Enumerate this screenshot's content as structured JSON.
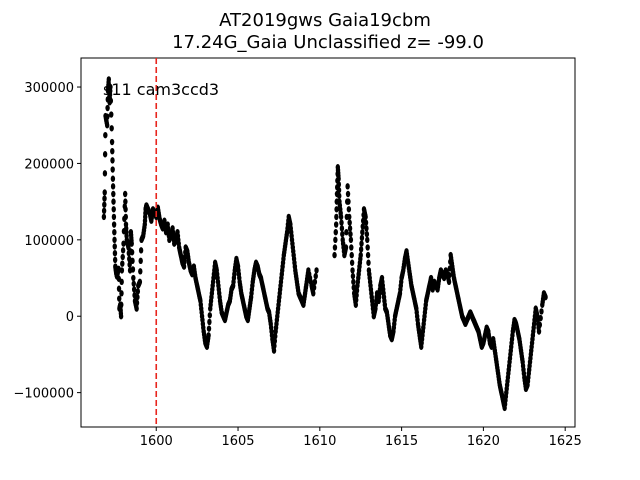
{
  "chart_data": {
    "type": "scatter",
    "title_line1": "AT2019gws  Gaia19cbm",
    "title_line2": "17.24G_Gaia Unclassified z= -99.0",
    "annotation": "s11 cam3ccd3",
    "xlabel": "",
    "ylabel": "",
    "xlim": [
      1595.4,
      1625.6
    ],
    "ylim": [
      -145000,
      338000
    ],
    "x_ticks": [
      1600,
      1605,
      1610,
      1615,
      1620,
      1625
    ],
    "y_ticks": [
      -100000,
      0,
      100000,
      200000,
      300000
    ],
    "vline_x": 1600,
    "vline_color": "#e8251e",
    "marker_color": "#000000",
    "grid": false,
    "legend": "none",
    "series": [
      {
        "points": [
          [
            1596.8,
            130000
          ],
          [
            1596.85,
            162000
          ],
          [
            1596.9,
            262000
          ],
          [
            1597.0,
            250000
          ],
          [
            1597.05,
            295000
          ],
          [
            1597.1,
            310000
          ],
          [
            1597.15,
            280000
          ],
          [
            1597.2,
            300000
          ],
          [
            1597.3,
            228000
          ],
          [
            1597.35,
            180000
          ],
          [
            1597.4,
            140000
          ],
          [
            1597.45,
            100000
          ],
          [
            1597.5,
            65000
          ],
          [
            1597.55,
            57000
          ],
          [
            1597.6,
            52000
          ],
          [
            1597.7,
            62000
          ],
          [
            1597.75,
            10000
          ],
          [
            1597.8,
            15000
          ],
          [
            1597.85,
            0
          ],
          [
            1597.9,
            60000
          ],
          [
            1598.0,
            95000
          ],
          [
            1598.1,
            160000
          ],
          [
            1598.15,
            120000
          ],
          [
            1598.2,
            100000
          ],
          [
            1598.3,
            90000
          ],
          [
            1598.4,
            60000
          ],
          [
            1598.45,
            110000
          ],
          [
            1598.5,
            95000
          ],
          [
            1598.6,
            50000
          ],
          [
            1598.7,
            20000
          ],
          [
            1598.8,
            10000
          ],
          [
            1598.9,
            40000
          ],
          [
            1599.0,
            45000
          ],
          [
            1599.1,
            100000
          ],
          [
            1599.2,
            105000
          ],
          [
            1599.3,
            120000
          ],
          [
            1599.35,
            140000
          ],
          [
            1599.4,
            145000
          ],
          [
            1599.5,
            140000
          ],
          [
            1599.6,
            135000
          ],
          [
            1599.7,
            125000
          ],
          [
            1599.8,
            140000
          ],
          [
            1599.9,
            135000
          ],
          [
            1600.0,
            130000
          ],
          [
            1600.1,
            142000
          ],
          [
            1600.2,
            128000
          ],
          [
            1600.3,
            120000
          ],
          [
            1600.4,
            115000
          ],
          [
            1600.5,
            125000
          ],
          [
            1600.6,
            110000
          ],
          [
            1600.7,
            120000
          ],
          [
            1600.8,
            100000
          ],
          [
            1600.9,
            105000
          ],
          [
            1601.0,
            115000
          ],
          [
            1601.1,
            95000
          ],
          [
            1601.2,
            100000
          ],
          [
            1601.3,
            110000
          ],
          [
            1601.4,
            90000
          ],
          [
            1601.5,
            80000
          ],
          [
            1601.6,
            70000
          ],
          [
            1601.7,
            65000
          ],
          [
            1601.8,
            90000
          ],
          [
            1601.9,
            85000
          ],
          [
            1602.0,
            70000
          ],
          [
            1602.1,
            60000
          ],
          [
            1602.2,
            55000
          ],
          [
            1602.3,
            65000
          ],
          [
            1602.4,
            50000
          ],
          [
            1602.5,
            40000
          ],
          [
            1602.6,
            30000
          ],
          [
            1602.7,
            20000
          ],
          [
            1602.8,
            0
          ],
          [
            1602.9,
            -20000
          ],
          [
            1603.0,
            -35000
          ],
          [
            1603.1,
            -40000
          ],
          [
            1603.2,
            -25000
          ],
          [
            1603.3,
            10000
          ],
          [
            1603.4,
            30000
          ],
          [
            1603.5,
            50000
          ],
          [
            1603.6,
            70000
          ],
          [
            1603.7,
            60000
          ],
          [
            1603.8,
            40000
          ],
          [
            1603.9,
            20000
          ],
          [
            1604.0,
            5000
          ],
          [
            1604.1,
            0
          ],
          [
            1604.2,
            -5000
          ],
          [
            1604.3,
            5000
          ],
          [
            1604.4,
            15000
          ],
          [
            1604.5,
            20000
          ],
          [
            1604.6,
            35000
          ],
          [
            1604.7,
            40000
          ],
          [
            1604.8,
            60000
          ],
          [
            1604.9,
            75000
          ],
          [
            1605.0,
            65000
          ],
          [
            1605.1,
            45000
          ],
          [
            1605.2,
            30000
          ],
          [
            1605.3,
            20000
          ],
          [
            1605.4,
            10000
          ],
          [
            1605.5,
            0
          ],
          [
            1605.6,
            -5000
          ],
          [
            1605.7,
            10000
          ],
          [
            1605.8,
            25000
          ],
          [
            1605.9,
            45000
          ],
          [
            1606.0,
            60000
          ],
          [
            1606.1,
            70000
          ],
          [
            1606.2,
            65000
          ],
          [
            1606.3,
            55000
          ],
          [
            1606.4,
            50000
          ],
          [
            1606.5,
            40000
          ],
          [
            1606.6,
            30000
          ],
          [
            1606.7,
            20000
          ],
          [
            1606.8,
            10000
          ],
          [
            1606.9,
            5000
          ],
          [
            1607.0,
            -10000
          ],
          [
            1607.1,
            -30000
          ],
          [
            1607.2,
            -45000
          ],
          [
            1607.3,
            -20000
          ],
          [
            1607.4,
            0
          ],
          [
            1607.5,
            20000
          ],
          [
            1607.6,
            40000
          ],
          [
            1607.7,
            60000
          ],
          [
            1607.8,
            80000
          ],
          [
            1607.9,
            95000
          ],
          [
            1608.0,
            110000
          ],
          [
            1608.1,
            130000
          ],
          [
            1608.2,
            120000
          ],
          [
            1608.3,
            100000
          ],
          [
            1608.4,
            80000
          ],
          [
            1608.5,
            60000
          ],
          [
            1608.6,
            45000
          ],
          [
            1608.7,
            30000
          ],
          [
            1608.8,
            25000
          ],
          [
            1608.9,
            20000
          ],
          [
            1609.0,
            15000
          ],
          [
            1609.1,
            30000
          ],
          [
            1609.2,
            45000
          ],
          [
            1609.3,
            60000
          ],
          [
            1609.5,
            40000
          ],
          [
            1609.6,
            30000
          ],
          [
            1609.8,
            60000
          ],
          [
            1610.9,
            80000
          ],
          [
            1611.0,
            120000
          ],
          [
            1611.05,
            160000
          ],
          [
            1611.1,
            195000
          ],
          [
            1611.15,
            180000
          ],
          [
            1611.2,
            150000
          ],
          [
            1611.3,
            130000
          ],
          [
            1611.4,
            100000
          ],
          [
            1611.5,
            80000
          ],
          [
            1611.6,
            90000
          ],
          [
            1611.7,
            170000
          ],
          [
            1611.8,
            130000
          ],
          [
            1611.9,
            100000
          ],
          [
            1612.0,
            60000
          ],
          [
            1612.1,
            30000
          ],
          [
            1612.2,
            15000
          ],
          [
            1612.3,
            40000
          ],
          [
            1612.4,
            60000
          ],
          [
            1612.5,
            80000
          ],
          [
            1612.6,
            110000
          ],
          [
            1612.7,
            140000
          ],
          [
            1612.8,
            130000
          ],
          [
            1612.9,
            100000
          ],
          [
            1613.0,
            60000
          ],
          [
            1613.1,
            40000
          ],
          [
            1613.2,
            20000
          ],
          [
            1613.3,
            0
          ],
          [
            1613.4,
            10000
          ],
          [
            1613.5,
            30000
          ],
          [
            1613.6,
            20000
          ],
          [
            1613.7,
            40000
          ],
          [
            1613.8,
            50000
          ],
          [
            1613.9,
            30000
          ],
          [
            1614.0,
            10000
          ],
          [
            1614.1,
            5000
          ],
          [
            1614.2,
            -10000
          ],
          [
            1614.3,
            -25000
          ],
          [
            1614.4,
            -30000
          ],
          [
            1614.5,
            -20000
          ],
          [
            1614.6,
            0
          ],
          [
            1614.7,
            10000
          ],
          [
            1614.8,
            20000
          ],
          [
            1614.9,
            30000
          ],
          [
            1615.0,
            50000
          ],
          [
            1615.1,
            60000
          ],
          [
            1615.2,
            75000
          ],
          [
            1615.3,
            85000
          ],
          [
            1615.4,
            70000
          ],
          [
            1615.5,
            55000
          ],
          [
            1615.6,
            40000
          ],
          [
            1615.7,
            30000
          ],
          [
            1615.8,
            20000
          ],
          [
            1615.9,
            10000
          ],
          [
            1616.0,
            -10000
          ],
          [
            1616.1,
            -25000
          ],
          [
            1616.2,
            -40000
          ],
          [
            1616.3,
            -20000
          ],
          [
            1616.4,
            0
          ],
          [
            1616.5,
            20000
          ],
          [
            1616.6,
            30000
          ],
          [
            1616.7,
            40000
          ],
          [
            1616.8,
            50000
          ],
          [
            1616.9,
            35000
          ],
          [
            1617.0,
            45000
          ],
          [
            1617.1,
            40000
          ],
          [
            1617.2,
            35000
          ],
          [
            1617.3,
            50000
          ],
          [
            1617.4,
            60000
          ],
          [
            1617.5,
            55000
          ],
          [
            1617.6,
            50000
          ],
          [
            1617.7,
            60000
          ],
          [
            1617.8,
            55000
          ],
          [
            1617.9,
            45000
          ],
          [
            1618.0,
            80000
          ],
          [
            1618.1,
            65000
          ],
          [
            1618.2,
            50000
          ],
          [
            1618.3,
            40000
          ],
          [
            1618.4,
            30000
          ],
          [
            1618.5,
            20000
          ],
          [
            1618.6,
            10000
          ],
          [
            1618.7,
            0
          ],
          [
            1618.8,
            -5000
          ],
          [
            1618.9,
            -10000
          ],
          [
            1619.0,
            -5000
          ],
          [
            1619.1,
            0
          ],
          [
            1619.2,
            5000
          ],
          [
            1619.3,
            0
          ],
          [
            1619.4,
            -5000
          ],
          [
            1619.5,
            -10000
          ],
          [
            1619.6,
            -15000
          ],
          [
            1619.7,
            -20000
          ],
          [
            1619.8,
            -30000
          ],
          [
            1619.9,
            -40000
          ],
          [
            1620.0,
            -35000
          ],
          [
            1620.1,
            -25000
          ],
          [
            1620.2,
            -15000
          ],
          [
            1620.3,
            -20000
          ],
          [
            1620.4,
            -35000
          ],
          [
            1620.5,
            -40000
          ],
          [
            1620.6,
            -30000
          ],
          [
            1620.7,
            -45000
          ],
          [
            1620.8,
            -60000
          ],
          [
            1620.9,
            -75000
          ],
          [
            1621.0,
            -90000
          ],
          [
            1621.1,
            -100000
          ],
          [
            1621.2,
            -110000
          ],
          [
            1621.3,
            -120000
          ],
          [
            1621.4,
            -100000
          ],
          [
            1621.5,
            -80000
          ],
          [
            1621.6,
            -60000
          ],
          [
            1621.7,
            -40000
          ],
          [
            1621.8,
            -20000
          ],
          [
            1621.9,
            -5000
          ],
          [
            1622.0,
            -10000
          ],
          [
            1622.1,
            -20000
          ],
          [
            1622.2,
            -30000
          ],
          [
            1622.3,
            -45000
          ],
          [
            1622.4,
            -60000
          ],
          [
            1622.5,
            -80000
          ],
          [
            1622.6,
            -95000
          ],
          [
            1622.7,
            -90000
          ],
          [
            1622.8,
            -70000
          ],
          [
            1622.9,
            -50000
          ],
          [
            1623.0,
            -30000
          ],
          [
            1623.1,
            -10000
          ],
          [
            1623.2,
            10000
          ],
          [
            1623.3,
            0
          ],
          [
            1623.4,
            -20000
          ],
          [
            1623.6,
            15000
          ],
          [
            1623.7,
            30000
          ],
          [
            1623.8,
            25000
          ]
        ]
      }
    ]
  }
}
